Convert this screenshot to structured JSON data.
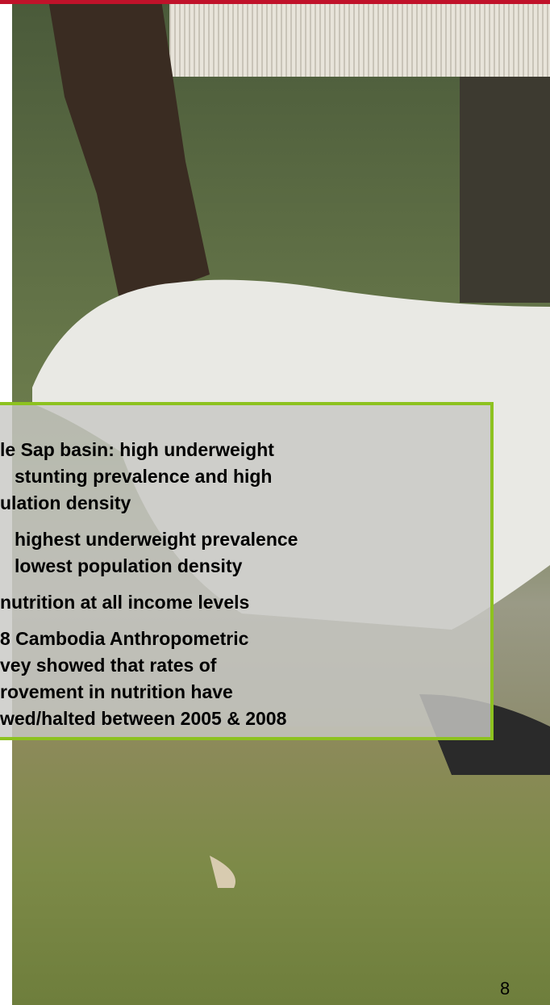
{
  "slide": {
    "bullets": [
      {
        "lines": [
          "le Sap basin: high underweight",
          "stunting prevalence and high",
          "ulation density"
        ]
      },
      {
        "lines": [
          "highest underweight prevalence",
          "lowest population density"
        ]
      },
      {
        "lines": [
          "nutrition at all income levels"
        ]
      },
      {
        "lines": [
          "8 Cambodia Anthropometric",
          "vey showed that rates of",
          "rovement in nutrition have",
          "wed/halted between 2005 & 2008"
        ]
      }
    ],
    "page_number": "8"
  }
}
